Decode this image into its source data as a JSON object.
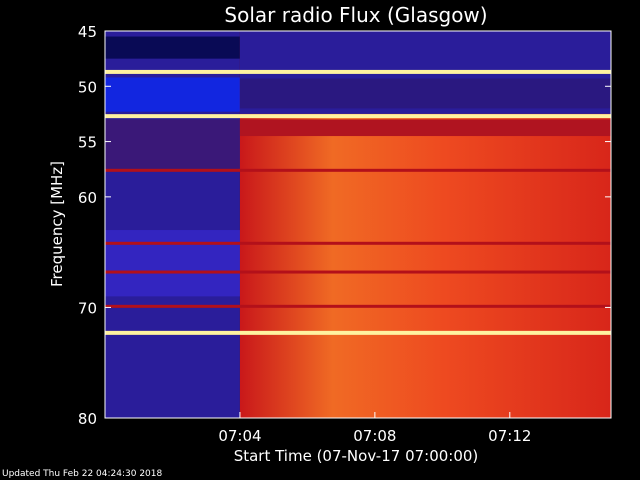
{
  "chart_data": {
    "type": "heatmap",
    "title": "Solar radio Flux (Glasgow)",
    "ylabel": "Frequency [MHz]",
    "xlabel": "Start Time (07-Nov-17 07:00:00)",
    "x_unit": "time",
    "x_range": [
      "07:00:00",
      "07:15:00"
    ],
    "y_range": [
      45,
      80
    ],
    "y_axis": "reversed",
    "x_ticks": [
      {
        "t": 4,
        "label": "07:04"
      },
      {
        "t": 8,
        "label": "07:08"
      },
      {
        "t": 12,
        "label": "07:12"
      }
    ],
    "y_ticks": [
      {
        "v": 45,
        "label": "45"
      },
      {
        "v": 50,
        "label": "50"
      },
      {
        "v": 55,
        "label": "55"
      },
      {
        "v": 60,
        "label": "60"
      },
      {
        "v": 70,
        "label": "70"
      },
      {
        "v": 80,
        "label": "80"
      }
    ],
    "transition_time": "07:04",
    "colors": {
      "background": "#000000",
      "quiet_low": "#2a1d9a",
      "quiet_band": "#1226e0",
      "dark_band": "#090a55",
      "active": "#e8321c",
      "active_bright": "#f7722a",
      "saturated": "#fff2a0"
    },
    "bright_lines_mhz": [
      48.7,
      52.7,
      72.3
    ],
    "red_lines_mhz": [
      57.6,
      64.2,
      66.8,
      69.9
    ]
  },
  "footer": "Updated Thu Feb 22 04:24:30 2018"
}
